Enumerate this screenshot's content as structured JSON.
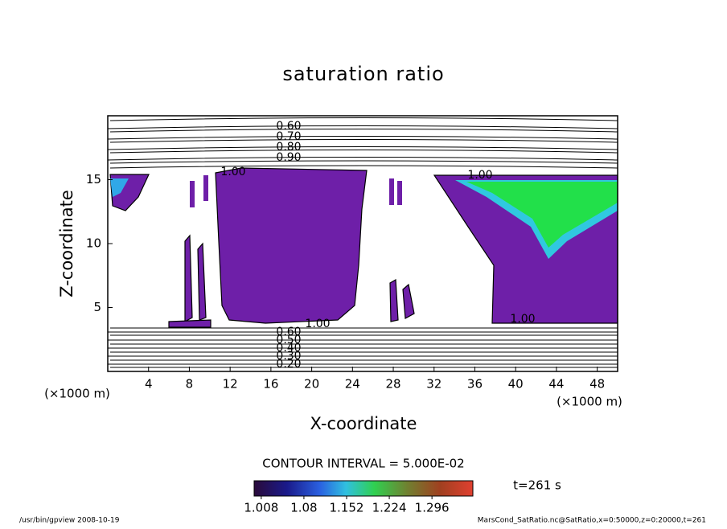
{
  "chart_data": {
    "type": "contour",
    "title": "saturation ratio",
    "x_label": "X-coordinate",
    "y_label": "Z-coordinate",
    "x_unit": "(×1000 m)",
    "y_unit": "(×1000 m)",
    "xlim": [
      0,
      50
    ],
    "xticks": [
      4,
      8,
      12,
      16,
      20,
      24,
      28,
      32,
      36,
      40,
      44,
      48
    ],
    "ylim": [
      0,
      20
    ],
    "yticks": [
      5,
      10,
      15
    ],
    "top_levels": [
      {
        "value": 0.6,
        "label": "0.60"
      },
      {
        "value": 0.7,
        "label": "0.70"
      },
      {
        "value": 0.8,
        "label": "0.80"
      },
      {
        "value": 0.9,
        "label": "0.90"
      }
    ],
    "bottom_levels": [
      {
        "value": 0.2,
        "label": "0.20"
      },
      {
        "value": 0.3,
        "label": "0.30"
      },
      {
        "value": 0.4,
        "label": "0.40"
      },
      {
        "value": 0.5,
        "label": "0.50"
      },
      {
        "value": 0.6,
        "label": "0.60"
      }
    ],
    "saturation_level": {
      "value": 1,
      "label": "1.00"
    },
    "contour_interval": "CONTOUR INTERVAL = 5.000E-02",
    "colorbar": {
      "clim": [
        0.996,
        1.365
      ],
      "ticks": [
        1.008,
        1.08,
        1.152,
        1.224,
        1.296
      ]
    },
    "time_label": "t=261 s",
    "footer_left": "/usr/bin/gpview  2008-10-19",
    "footer_right": "MarsCond_SatRatio.nc@SatRatio,x=0:50000,z=0:20000,t=261"
  }
}
